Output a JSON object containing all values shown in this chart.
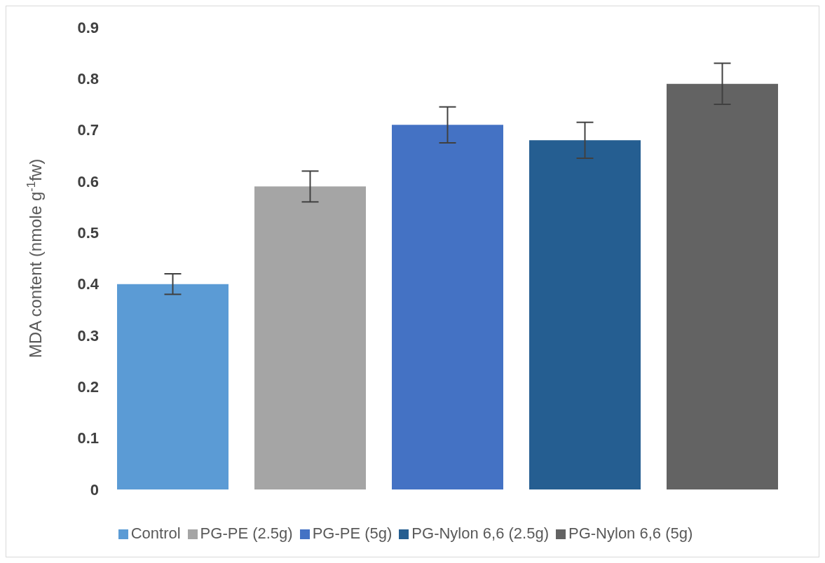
{
  "chart_data": {
    "type": "bar",
    "ylabel": "MDA content (nmole g$^{-1}$fw)",
    "categories": [
      null
    ],
    "series": [
      {
        "name": "Control",
        "color": "#5b9bd5",
        "values": [
          0.4
        ],
        "errors": [
          0.02
        ]
      },
      {
        "name": "PG-PE (2.5g)",
        "color": "#a5a5a5",
        "values": [
          0.59
        ],
        "errors": [
          0.03
        ]
      },
      {
        "name": "PG-PE (5g)",
        "color": "#4472c4",
        "values": [
          0.71
        ],
        "errors": [
          0.035
        ]
      },
      {
        "name": "PG-Nylon 6,6 (2.5g)",
        "color": "#255e91",
        "values": [
          0.68
        ],
        "errors": [
          0.035
        ]
      },
      {
        "name": "PG-Nylon 6,6 (5g)",
        "color": "#636363",
        "values": [
          0.79
        ],
        "errors": [
          0.04
        ]
      }
    ],
    "ylim": [
      0,
      0.9
    ],
    "yticks": [
      0,
      0.1,
      0.2,
      0.3,
      0.4,
      0.5,
      0.6,
      0.7,
      0.8,
      0.9
    ],
    "grid": false,
    "legend": "bottom"
  }
}
